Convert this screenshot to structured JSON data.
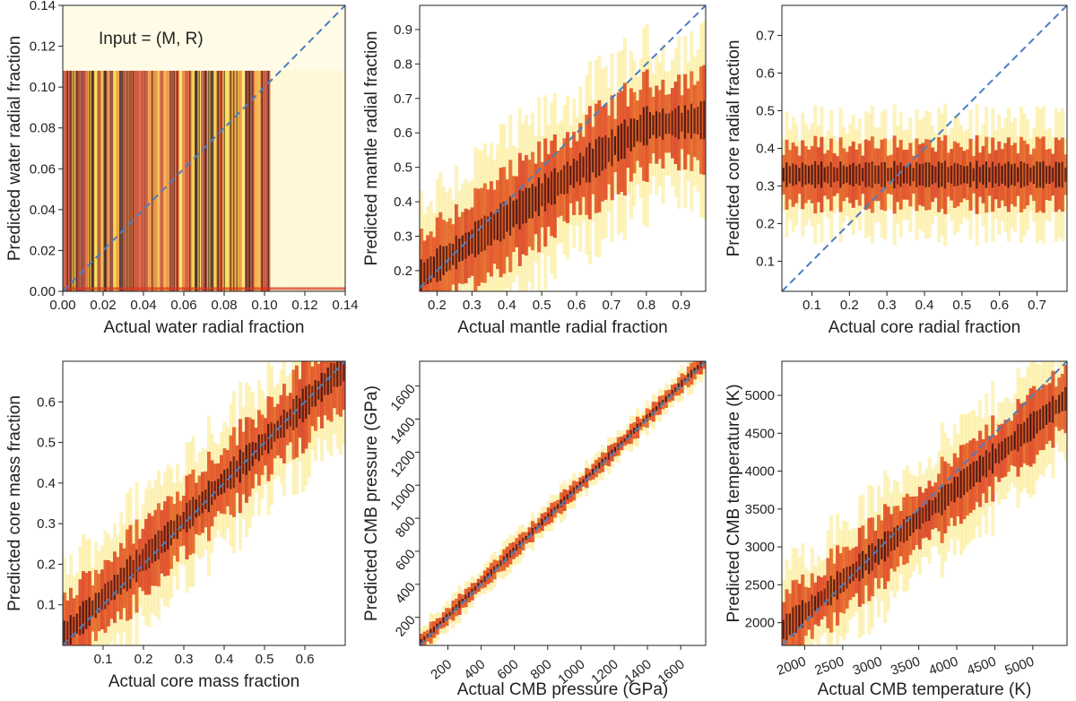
{
  "chart_data": [
    {
      "type": "heatmap",
      "title": "",
      "annotation": "Input = (M, R)",
      "xlabel": "Actual water radial fraction",
      "ylabel": "Predicted water radial fraction",
      "xlim": [
        0.0,
        0.14
      ],
      "ylim": [
        0.0,
        0.14
      ],
      "xticks": [
        0.0,
        0.02,
        0.04,
        0.06,
        0.08,
        0.1,
        0.12,
        0.14
      ],
      "xtick_labels": [
        "0.00",
        "0.02",
        "0.04",
        "0.06",
        "0.08",
        "0.10",
        "0.12",
        "0.14"
      ],
      "yticks": [
        0.0,
        0.02,
        0.04,
        0.06,
        0.08,
        0.1,
        0.12,
        0.14
      ],
      "ytick_labels": [
        "0.00",
        "0.02",
        "0.04",
        "0.06",
        "0.08",
        "0.10",
        "0.12",
        "0.14"
      ],
      "diagonal": true,
      "density": {
        "pattern": "columns",
        "low": 0.0,
        "high": 0.108,
        "xmax": 0.103,
        "spread": 0.0
      }
    },
    {
      "type": "heatmap",
      "title": "",
      "xlabel": "Actual mantle radial fraction",
      "ylabel": "Predicted mantle radial fraction",
      "xlim": [
        0.15,
        0.97
      ],
      "ylim": [
        0.14,
        0.97
      ],
      "xticks": [
        0.2,
        0.3,
        0.4,
        0.5,
        0.6,
        0.7,
        0.8,
        0.9
      ],
      "xtick_labels": [
        "0.2",
        "0.3",
        "0.4",
        "0.5",
        "0.6",
        "0.7",
        "0.8",
        "0.9"
      ],
      "yticks": [
        0.2,
        0.3,
        0.4,
        0.5,
        0.6,
        0.7,
        0.8,
        0.9
      ],
      "ytick_labels": [
        "0.2",
        "0.3",
        "0.4",
        "0.5",
        "0.6",
        "0.7",
        "0.8",
        "0.9"
      ],
      "diagonal": true,
      "density": {
        "pattern": "band",
        "center_a": 0.08,
        "center_b": 0.68,
        "plateau": 0.62,
        "spread": 0.11
      }
    },
    {
      "type": "heatmap",
      "title": "",
      "xlabel": "Actual core radial fraction",
      "ylabel": "Predicted core radial fraction",
      "xlim": [
        0.02,
        0.78
      ],
      "ylim": [
        0.02,
        0.78
      ],
      "xticks": [
        0.1,
        0.2,
        0.3,
        0.4,
        0.5,
        0.6,
        0.7
      ],
      "xtick_labels": [
        "0.1",
        "0.2",
        "0.3",
        "0.4",
        "0.5",
        "0.6",
        "0.7"
      ],
      "yticks": [
        0.1,
        0.2,
        0.3,
        0.4,
        0.5,
        0.6,
        0.7
      ],
      "ytick_labels": [
        "0.1",
        "0.2",
        "0.3",
        "0.4",
        "0.5",
        "0.6",
        "0.7"
      ],
      "diagonal": true,
      "density": {
        "pattern": "band",
        "center_a": 0.33,
        "center_b": 0.0,
        "floor": 0.33,
        "spread": 0.07
      }
    },
    {
      "type": "heatmap",
      "title": "",
      "xlabel": "Actual core mass fraction",
      "ylabel": "Predicted core mass fraction",
      "xlim": [
        0.0,
        0.7
      ],
      "ylim": [
        0.0,
        0.7
      ],
      "xticks": [
        0.1,
        0.2,
        0.3,
        0.4,
        0.5,
        0.6
      ],
      "xtick_labels": [
        "0.1",
        "0.2",
        "0.3",
        "0.4",
        "0.5",
        "0.6"
      ],
      "yticks": [
        0.1,
        0.2,
        0.3,
        0.4,
        0.5,
        0.6
      ],
      "ytick_labels": [
        "0.1",
        "0.2",
        "0.3",
        "0.4",
        "0.5",
        "0.6"
      ],
      "diagonal": true,
      "density": {
        "pattern": "band",
        "center_a": 0.02,
        "center_b": 0.96,
        "spread": 0.08
      }
    },
    {
      "type": "heatmap",
      "title": "",
      "xlabel": "Actual CMB pressure (GPa)",
      "ylabel": "Predicted CMB pressure (GPa)",
      "xlim": [
        30,
        1750
      ],
      "ylim": [
        30,
        1750
      ],
      "xticks": [
        200,
        400,
        600,
        800,
        1000,
        1200,
        1400,
        1600
      ],
      "xtick_labels": [
        "200",
        "400",
        "600",
        "800",
        "1000",
        "1200",
        "1400",
        "1600"
      ],
      "xtick_rotation": -40,
      "yticks": [
        200,
        400,
        600,
        800,
        1000,
        1200,
        1400,
        1600
      ],
      "ytick_labels": [
        "200",
        "400",
        "600",
        "800",
        "1000",
        "1200",
        "1400",
        "1600"
      ],
      "diagonal": true,
      "density": {
        "pattern": "band",
        "center_a": 10,
        "center_b": 1.0,
        "spread": 45
      }
    },
    {
      "type": "heatmap",
      "title": "",
      "xlabel": "Actual CMB temperature (K)",
      "ylabel": "Predicted CMB temperature (K)",
      "xlim": [
        1700,
        5450
      ],
      "ylim": [
        1700,
        5450
      ],
      "xticks": [
        2000,
        2500,
        3000,
        3500,
        4000,
        4500,
        5000
      ],
      "xtick_labels": [
        "2000",
        "2500",
        "3000",
        "3500",
        "4000",
        "4500",
        "5000"
      ],
      "xtick_rotation": -20,
      "yticks": [
        2000,
        2500,
        3000,
        3500,
        4000,
        4500,
        5000
      ],
      "ytick_labels": [
        "2000",
        "2500",
        "3000",
        "3500",
        "4000",
        "4500",
        "5000"
      ],
      "diagonal": true,
      "density": {
        "pattern": "band",
        "center_a": 500,
        "center_b": 0.82,
        "spread": 380
      }
    }
  ],
  "colors": {
    "diagonal": "#4a7fc1",
    "axis": "#222222",
    "heat_low": "#fff6c8",
    "heat_mid": "#f5d51a",
    "heat_high": "#d9331d",
    "heat_peak": "#1a0a0a"
  }
}
